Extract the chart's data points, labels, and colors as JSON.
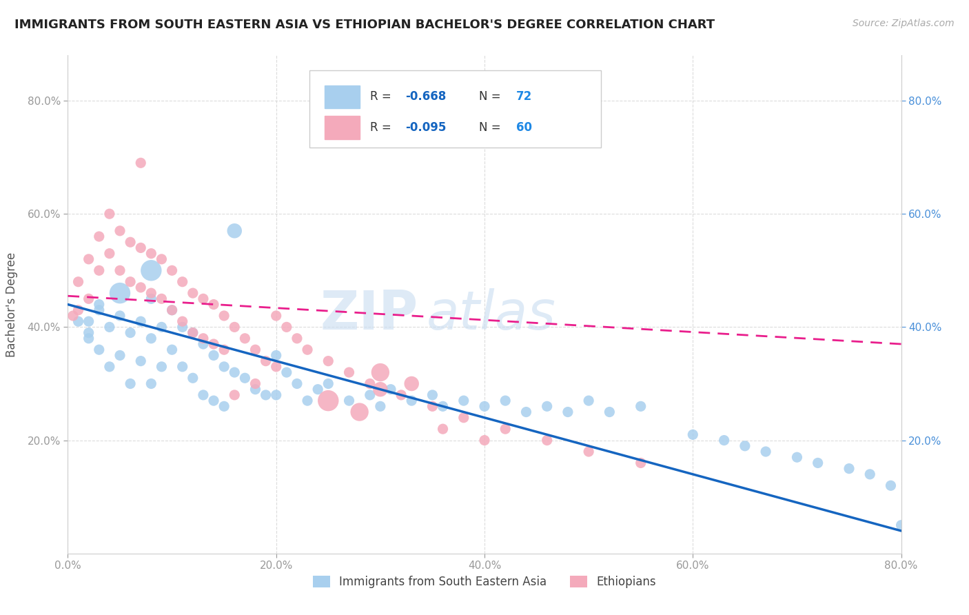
{
  "title": "IMMIGRANTS FROM SOUTH EASTERN ASIA VS ETHIOPIAN BACHELOR'S DEGREE CORRELATION CHART",
  "source": "Source: ZipAtlas.com",
  "ylabel": "Bachelor's Degree",
  "xlim": [
    0.0,
    0.8
  ],
  "ylim": [
    0.0,
    0.88
  ],
  "xtick_vals": [
    0.0,
    0.2,
    0.4,
    0.6,
    0.8
  ],
  "ytick_vals": [
    0.2,
    0.4,
    0.6,
    0.8
  ],
  "right_ytick_vals": [
    0.2,
    0.4,
    0.6,
    0.8
  ],
  "legend_label1": "Immigrants from South Eastern Asia",
  "legend_label2": "Ethiopians",
  "color_blue": "#A8CFEE",
  "color_pink": "#F4AABB",
  "trendline_blue": "#1565C0",
  "trendline_pink": "#E91E8C",
  "watermark": "ZIPatlas",
  "watermark_color": "#C8DCF0",
  "background": "#FFFFFF",
  "blue_trend_x": [
    0.0,
    0.8
  ],
  "blue_trend_y": [
    0.44,
    0.04
  ],
  "pink_trend_x": [
    0.0,
    0.8
  ],
  "pink_trend_y": [
    0.455,
    0.37
  ],
  "grid_color": "#CCCCCC",
  "title_color": "#222222",
  "axis_label_color": "#555555",
  "left_tick_color": "#999999",
  "right_tick_color": "#4A90D9",
  "legend_r_color": "#1565C0",
  "legend_n_color": "#1E88E5",
  "blue_scatter_x": [
    0.02,
    0.02,
    0.03,
    0.03,
    0.04,
    0.04,
    0.05,
    0.05,
    0.06,
    0.06,
    0.07,
    0.07,
    0.08,
    0.08,
    0.08,
    0.09,
    0.09,
    0.1,
    0.1,
    0.11,
    0.11,
    0.12,
    0.12,
    0.13,
    0.13,
    0.14,
    0.14,
    0.15,
    0.15,
    0.16,
    0.17,
    0.18,
    0.19,
    0.2,
    0.2,
    0.21,
    0.22,
    0.23,
    0.24,
    0.25,
    0.27,
    0.29,
    0.3,
    0.31,
    0.33,
    0.35,
    0.36,
    0.38,
    0.4,
    0.42,
    0.44,
    0.46,
    0.48,
    0.5,
    0.52,
    0.55,
    0.6,
    0.63,
    0.65,
    0.67,
    0.7,
    0.72,
    0.75,
    0.77,
    0.79,
    0.8,
    0.16,
    0.08,
    0.05,
    0.03,
    0.01,
    0.02
  ],
  "blue_scatter_y": [
    0.41,
    0.38,
    0.43,
    0.36,
    0.4,
    0.33,
    0.42,
    0.35,
    0.39,
    0.3,
    0.41,
    0.34,
    0.45,
    0.38,
    0.3,
    0.4,
    0.33,
    0.43,
    0.36,
    0.4,
    0.33,
    0.39,
    0.31,
    0.37,
    0.28,
    0.35,
    0.27,
    0.33,
    0.26,
    0.32,
    0.31,
    0.29,
    0.28,
    0.35,
    0.28,
    0.32,
    0.3,
    0.27,
    0.29,
    0.3,
    0.27,
    0.28,
    0.26,
    0.29,
    0.27,
    0.28,
    0.26,
    0.27,
    0.26,
    0.27,
    0.25,
    0.26,
    0.25,
    0.27,
    0.25,
    0.26,
    0.21,
    0.2,
    0.19,
    0.18,
    0.17,
    0.16,
    0.15,
    0.14,
    0.12,
    0.05,
    0.57,
    0.5,
    0.46,
    0.44,
    0.41,
    0.39
  ],
  "blue_scatter_size": [
    30,
    30,
    30,
    30,
    30,
    30,
    30,
    30,
    30,
    30,
    30,
    30,
    30,
    30,
    30,
    30,
    30,
    30,
    30,
    30,
    30,
    30,
    30,
    30,
    30,
    30,
    30,
    30,
    30,
    30,
    30,
    30,
    30,
    30,
    30,
    30,
    30,
    30,
    30,
    30,
    30,
    30,
    30,
    30,
    30,
    30,
    30,
    30,
    30,
    30,
    30,
    30,
    30,
    30,
    30,
    30,
    30,
    30,
    30,
    30,
    30,
    30,
    30,
    30,
    30,
    30,
    60,
    120,
    120,
    30,
    30,
    30
  ],
  "pink_scatter_x": [
    0.005,
    0.01,
    0.01,
    0.02,
    0.02,
    0.03,
    0.03,
    0.04,
    0.04,
    0.05,
    0.05,
    0.06,
    0.06,
    0.07,
    0.07,
    0.08,
    0.08,
    0.09,
    0.09,
    0.1,
    0.1,
    0.11,
    0.11,
    0.12,
    0.12,
    0.13,
    0.13,
    0.14,
    0.14,
    0.15,
    0.15,
    0.16,
    0.17,
    0.18,
    0.19,
    0.2,
    0.21,
    0.22,
    0.23,
    0.25,
    0.27,
    0.29,
    0.32,
    0.35,
    0.38,
    0.42,
    0.46,
    0.5,
    0.55,
    0.3,
    0.07,
    0.36,
    0.4,
    0.25,
    0.28,
    0.3,
    0.33,
    0.2,
    0.18,
    0.16
  ],
  "pink_scatter_y": [
    0.42,
    0.48,
    0.43,
    0.52,
    0.45,
    0.56,
    0.5,
    0.6,
    0.53,
    0.57,
    0.5,
    0.55,
    0.48,
    0.54,
    0.47,
    0.53,
    0.46,
    0.52,
    0.45,
    0.5,
    0.43,
    0.48,
    0.41,
    0.46,
    0.39,
    0.45,
    0.38,
    0.44,
    0.37,
    0.42,
    0.36,
    0.4,
    0.38,
    0.36,
    0.34,
    0.42,
    0.4,
    0.38,
    0.36,
    0.34,
    0.32,
    0.3,
    0.28,
    0.26,
    0.24,
    0.22,
    0.2,
    0.18,
    0.16,
    0.29,
    0.69,
    0.22,
    0.2,
    0.27,
    0.25,
    0.32,
    0.3,
    0.33,
    0.3,
    0.28
  ],
  "pink_scatter_size": [
    30,
    30,
    30,
    30,
    30,
    30,
    30,
    30,
    30,
    30,
    30,
    30,
    30,
    30,
    30,
    30,
    30,
    30,
    30,
    30,
    30,
    30,
    30,
    30,
    30,
    30,
    30,
    30,
    30,
    30,
    30,
    30,
    30,
    30,
    30,
    30,
    30,
    30,
    30,
    30,
    30,
    30,
    30,
    30,
    30,
    30,
    30,
    30,
    30,
    60,
    30,
    30,
    30,
    120,
    90,
    90,
    60,
    30,
    30,
    30
  ]
}
